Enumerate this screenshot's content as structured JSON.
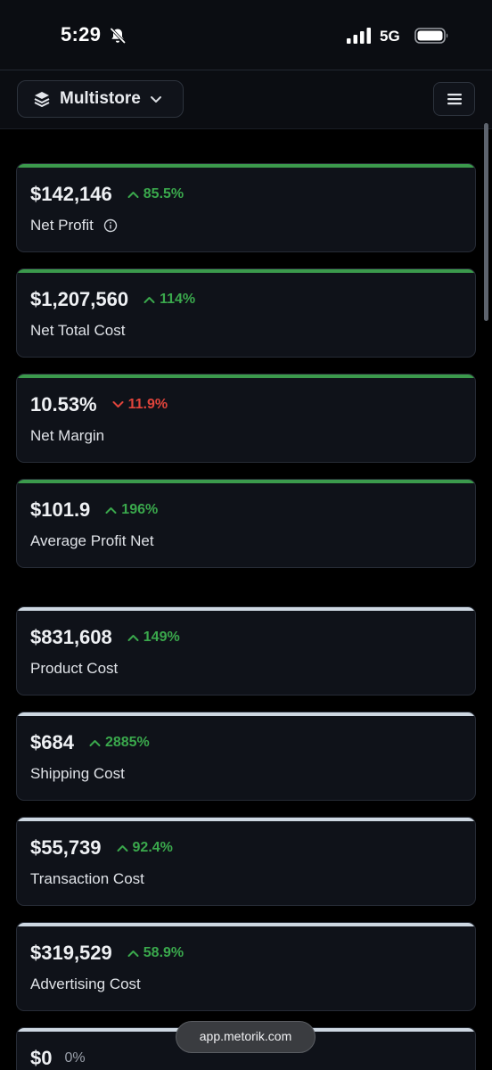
{
  "status_bar": {
    "time": "5:29",
    "network": "5G",
    "icons": [
      "bell-slash-icon",
      "signal-bars-icon",
      "battery-icon"
    ]
  },
  "header": {
    "store_selector_label": "Multistore",
    "icons": [
      "layers-icon",
      "chevron-down-icon",
      "hamburger-menu-icon"
    ]
  },
  "profit_cards": [
    {
      "value": "$142,146",
      "delta": "85.5%",
      "trend": "up",
      "label": "Net Profit",
      "info": true
    },
    {
      "value": "$1,207,560",
      "delta": "114%",
      "trend": "up",
      "label": "Net Total Cost"
    },
    {
      "value": "10.53%",
      "delta": "11.9%",
      "trend": "down",
      "label": "Net Margin"
    },
    {
      "value": "$101.9",
      "delta": "196%",
      "trend": "up",
      "label": "Average Profit Net"
    }
  ],
  "cost_cards": [
    {
      "value": "$831,608",
      "delta": "149%",
      "trend": "up",
      "label": "Product Cost"
    },
    {
      "value": "$684",
      "delta": "2885%",
      "trend": "up",
      "label": "Shipping Cost"
    },
    {
      "value": "$55,739",
      "delta": "92.4%",
      "trend": "up",
      "label": "Transaction Cost"
    },
    {
      "value": "$319,529",
      "delta": "58.9%",
      "trend": "up",
      "label": "Advertising Cost"
    },
    {
      "value": "$0",
      "delta": "0%",
      "trend": "flat",
      "label": ""
    }
  ],
  "colors": {
    "background": "#000000",
    "card": "#0f1219",
    "accent_green": "#3b9a4c",
    "accent_gray": "#cdd7e1",
    "delta_up": "#3aa84c",
    "delta_down": "#e0443b"
  },
  "browser": {
    "url": "app.metorik.com"
  }
}
